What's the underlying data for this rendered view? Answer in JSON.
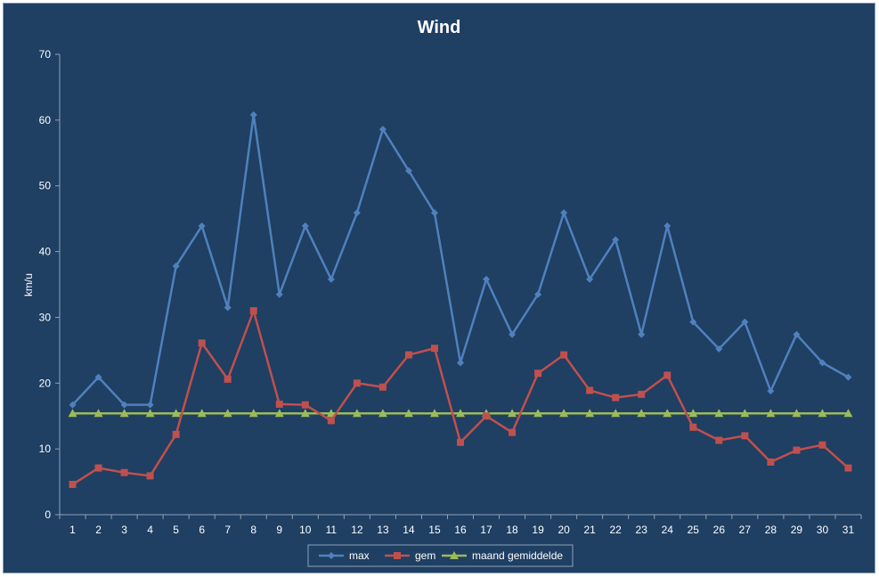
{
  "chart_data": {
    "type": "line",
    "title": "Wind",
    "xlabel": "",
    "ylabel": "km/u",
    "ylim": [
      0,
      70
    ],
    "yticks": [
      0,
      10,
      20,
      30,
      40,
      50,
      60,
      70
    ],
    "categories": [
      "1",
      "2",
      "3",
      "4",
      "5",
      "6",
      "7",
      "8",
      "9",
      "10",
      "11",
      "12",
      "13",
      "14",
      "15",
      "16",
      "17",
      "18",
      "19",
      "20",
      "21",
      "22",
      "23",
      "24",
      "25",
      "26",
      "27",
      "28",
      "29",
      "30",
      "31"
    ],
    "series": [
      {
        "name": "max",
        "color": "#4f81bd",
        "marker": "diamond",
        "values": [
          16.7,
          20.9,
          16.7,
          16.7,
          37.8,
          43.9,
          31.5,
          60.8,
          33.5,
          43.9,
          35.8,
          45.9,
          58.6,
          52.3,
          45.9,
          23.1,
          35.8,
          27.4,
          33.5,
          45.9,
          35.8,
          41.8,
          27.4,
          43.9,
          29.3,
          25.2,
          29.3,
          18.8,
          27.4,
          23.1,
          20.9
        ]
      },
      {
        "name": "gem",
        "color": "#c0504d",
        "marker": "square",
        "values": [
          4.6,
          7.1,
          6.4,
          5.9,
          12.2,
          26.1,
          20.6,
          31.0,
          16.8,
          16.7,
          14.3,
          20.0,
          19.4,
          24.3,
          25.3,
          11.0,
          15.0,
          12.5,
          21.5,
          24.3,
          18.9,
          17.8,
          18.3,
          21.2,
          13.3,
          11.3,
          12.0,
          8.0,
          9.8,
          10.6,
          7.1
        ]
      },
      {
        "name": "maand gemiddelde",
        "color": "#9bbb59",
        "marker": "triangle",
        "values": [
          15.4,
          15.4,
          15.4,
          15.4,
          15.4,
          15.4,
          15.4,
          15.4,
          15.4,
          15.4,
          15.4,
          15.4,
          15.4,
          15.4,
          15.4,
          15.4,
          15.4,
          15.4,
          15.4,
          15.4,
          15.4,
          15.4,
          15.4,
          15.4,
          15.4,
          15.4,
          15.4,
          15.4,
          15.4,
          15.4,
          15.4
        ]
      }
    ],
    "grid": false,
    "legend": "bottom-center"
  }
}
